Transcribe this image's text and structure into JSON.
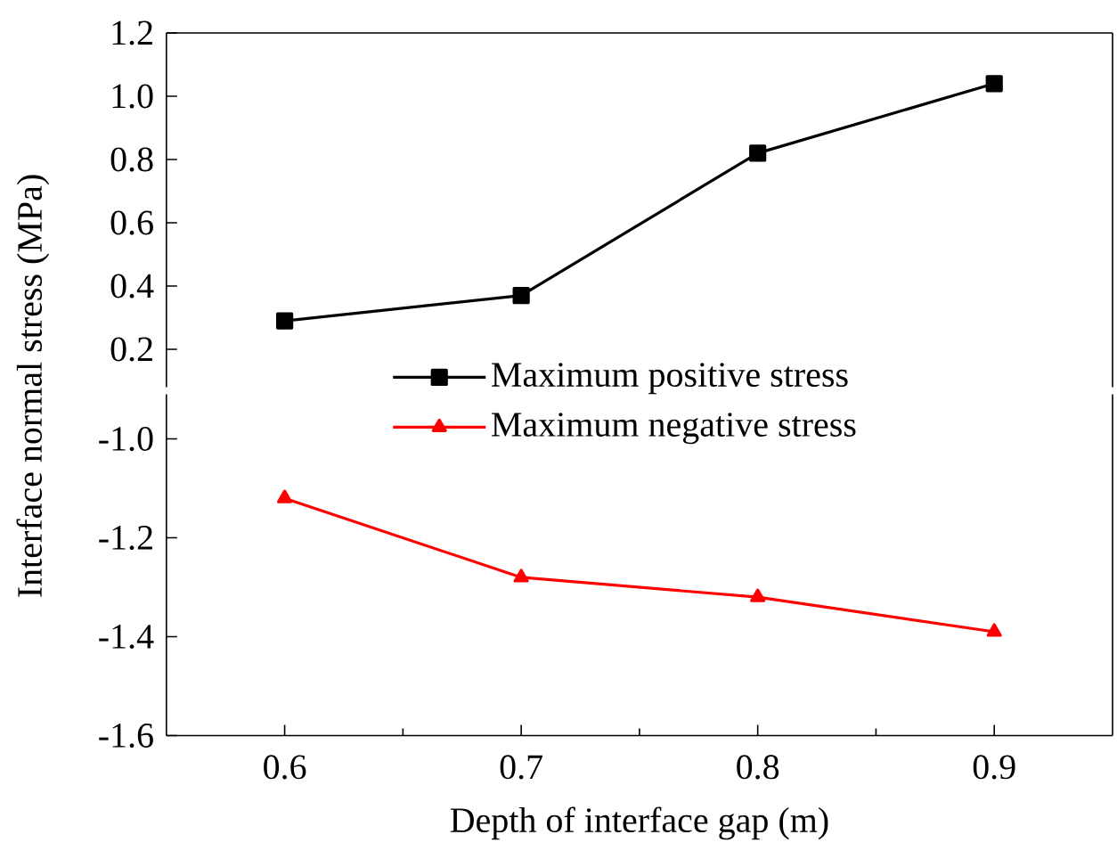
{
  "chart_data": [
    {
      "type": "line",
      "x": [
        0.6,
        0.7,
        0.8,
        0.9
      ],
      "xlim": [
        0.55,
        0.95
      ],
      "xticks": [
        0.6,
        0.7,
        0.8,
        0.9
      ],
      "ylim": [
        0.08,
        1.2
      ],
      "yticks": [
        0.2,
        0.4,
        0.6,
        0.8,
        {
          "value": 1.0,
          "label": "1.0"
        },
        1.2
      ],
      "tick_labels": "y",
      "legend": "bottom",
      "series": [
        {
          "name": "Maximum positive stress",
          "color": "#000000",
          "marker": "square",
          "values": [
            0.29,
            0.37,
            0.82,
            1.04
          ]
        }
      ]
    },
    {
      "type": "line",
      "x": [
        0.6,
        0.7,
        0.8,
        0.9
      ],
      "xlim": [
        0.55,
        0.95
      ],
      "xticks": [
        0.6,
        0.7,
        0.8,
        0.9
      ],
      "ylim": [
        -1.6,
        -0.91
      ],
      "yticks": [
        -1.6,
        -1.4,
        -1.2,
        {
          "value": -1.0,
          "label": "-1.0"
        }
      ],
      "xlabel": "Depth of interface gap (m)",
      "ylabel": "Interface normal stress (MPa)",
      "legend": "top",
      "series": [
        {
          "name": "Maximum negative stress",
          "color": "#ff0000",
          "marker": "triangle",
          "values": [
            -1.12,
            -1.28,
            -1.32,
            -1.39
          ]
        }
      ]
    }
  ]
}
